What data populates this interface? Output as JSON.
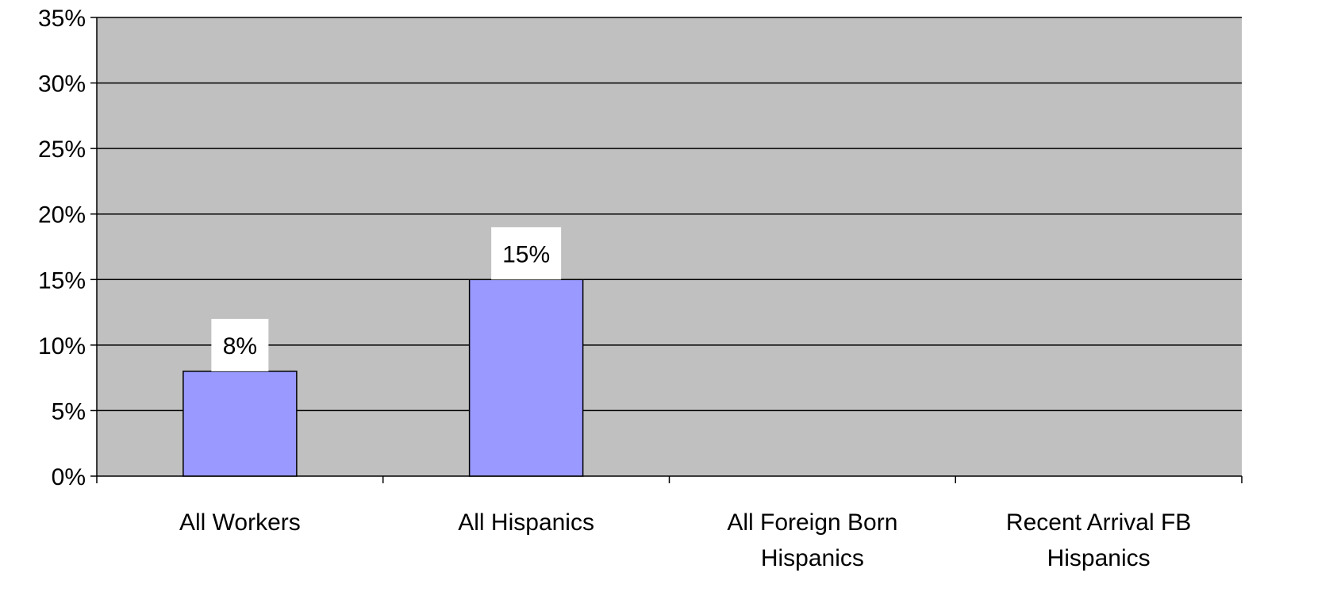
{
  "chart_data": {
    "type": "bar",
    "title": "",
    "xlabel": "",
    "ylabel": "",
    "categories": [
      [
        "All Workers"
      ],
      [
        "All Hispanics"
      ],
      [
        "All Foreign Born",
        "Hispanics"
      ],
      [
        "Recent Arrival FB",
        "Hispanics"
      ]
    ],
    "values": [
      8,
      15,
      null,
      null
    ],
    "data_labels": [
      "8%",
      "15%",
      null,
      null
    ],
    "ylim": [
      0,
      35
    ],
    "y_ticks": [
      0,
      5,
      10,
      15,
      20,
      25,
      30,
      35
    ],
    "y_tick_labels": [
      "0%",
      "5%",
      "10%",
      "15%",
      "20%",
      "25%",
      "30%",
      "35%"
    ],
    "grid": true,
    "legend": "none",
    "colors": {
      "plot_background": "#c0c0c0",
      "bar_fill": "#9999ff",
      "bar_stroke": "#000000",
      "gridline": "#000000",
      "label_box": "#ffffff"
    }
  }
}
